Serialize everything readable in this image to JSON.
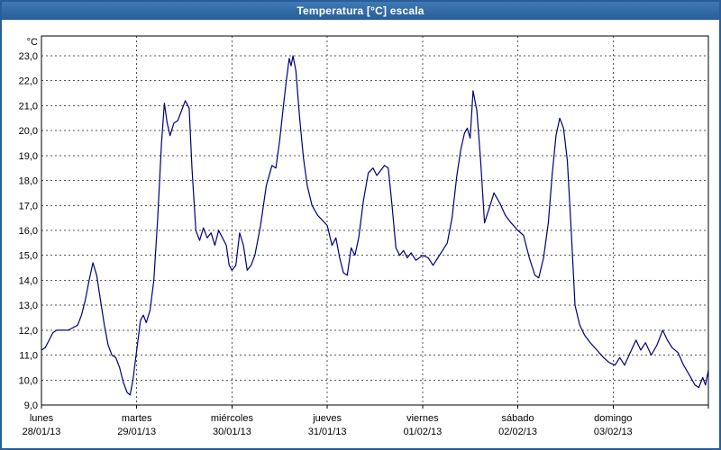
{
  "window": {
    "title": "Temperatura [°C] escala"
  },
  "chart_data": {
    "type": "line",
    "title": "Temperatura [°C] escala",
    "grid": "dashed",
    "legend": "none",
    "y_axis": {
      "unit": "°C",
      "min": 9,
      "max": 23,
      "step": 1,
      "tick_labels": [
        "23,0",
        "22,0",
        "21,0",
        "20,0",
        "19,0",
        "18,0",
        "17,0",
        "16,0",
        "15,0",
        "14,0",
        "13,0",
        "12,0",
        "11,0",
        "10,0",
        "9,0"
      ]
    },
    "x_axis": {
      "range_days": [
        0,
        7
      ],
      "days": [
        {
          "name": "lunes",
          "date": "28/01/13"
        },
        {
          "name": "martes",
          "date": "29/01/13"
        },
        {
          "name": "miércoles",
          "date": "30/01/13"
        },
        {
          "name": "jueves",
          "date": "31/01/13"
        },
        {
          "name": "viernes",
          "date": "01/02/13"
        },
        {
          "name": "sábado",
          "date": "02/02/13"
        },
        {
          "name": "domingo",
          "date": "03/02/13"
        }
      ]
    },
    "series": [
      {
        "name": "Temperatura [°C]",
        "color": "#00007f",
        "points_day_temp": [
          [
            0.0,
            11.2
          ],
          [
            0.04,
            11.3
          ],
          [
            0.08,
            11.6
          ],
          [
            0.12,
            11.9
          ],
          [
            0.16,
            12.0
          ],
          [
            0.22,
            12.0
          ],
          [
            0.28,
            12.0
          ],
          [
            0.33,
            12.1
          ],
          [
            0.38,
            12.2
          ],
          [
            0.42,
            12.6
          ],
          [
            0.46,
            13.2
          ],
          [
            0.5,
            14.0
          ],
          [
            0.54,
            14.7
          ],
          [
            0.58,
            14.2
          ],
          [
            0.62,
            13.2
          ],
          [
            0.66,
            12.2
          ],
          [
            0.7,
            11.4
          ],
          [
            0.74,
            11.0
          ],
          [
            0.78,
            10.9
          ],
          [
            0.82,
            10.5
          ],
          [
            0.86,
            9.9
          ],
          [
            0.9,
            9.5
          ],
          [
            0.93,
            9.4
          ],
          [
            0.96,
            10.0
          ],
          [
            1.0,
            11.2
          ],
          [
            1.04,
            12.4
          ],
          [
            1.07,
            12.6
          ],
          [
            1.1,
            12.3
          ],
          [
            1.14,
            12.8
          ],
          [
            1.18,
            14.0
          ],
          [
            1.22,
            16.5
          ],
          [
            1.26,
            19.5
          ],
          [
            1.29,
            21.1
          ],
          [
            1.32,
            20.3
          ],
          [
            1.35,
            19.8
          ],
          [
            1.39,
            20.3
          ],
          [
            1.43,
            20.4
          ],
          [
            1.47,
            20.8
          ],
          [
            1.51,
            21.2
          ],
          [
            1.55,
            20.9
          ],
          [
            1.58,
            18.5
          ],
          [
            1.62,
            16.0
          ],
          [
            1.66,
            15.6
          ],
          [
            1.7,
            16.1
          ],
          [
            1.74,
            15.7
          ],
          [
            1.78,
            15.9
          ],
          [
            1.82,
            15.4
          ],
          [
            1.86,
            16.0
          ],
          [
            1.9,
            15.7
          ],
          [
            1.94,
            15.4
          ],
          [
            1.97,
            14.6
          ],
          [
            2.0,
            14.4
          ],
          [
            2.04,
            14.6
          ],
          [
            2.08,
            15.9
          ],
          [
            2.12,
            15.4
          ],
          [
            2.16,
            14.4
          ],
          [
            2.2,
            14.6
          ],
          [
            2.24,
            15.0
          ],
          [
            2.3,
            16.2
          ],
          [
            2.36,
            17.8
          ],
          [
            2.42,
            18.6
          ],
          [
            2.46,
            18.5
          ],
          [
            2.5,
            19.6
          ],
          [
            2.54,
            21.0
          ],
          [
            2.57,
            22.0
          ],
          [
            2.6,
            22.9
          ],
          [
            2.62,
            22.6
          ],
          [
            2.64,
            23.0
          ],
          [
            2.67,
            22.4
          ],
          [
            2.71,
            20.5
          ],
          [
            2.75,
            18.9
          ],
          [
            2.79,
            17.8
          ],
          [
            2.84,
            17.0
          ],
          [
            2.9,
            16.6
          ],
          [
            2.95,
            16.4
          ],
          [
            3.0,
            16.2
          ],
          [
            3.05,
            15.4
          ],
          [
            3.09,
            15.7
          ],
          [
            3.13,
            14.9
          ],
          [
            3.17,
            14.3
          ],
          [
            3.21,
            14.2
          ],
          [
            3.25,
            15.3
          ],
          [
            3.29,
            15.0
          ],
          [
            3.33,
            15.7
          ],
          [
            3.38,
            17.2
          ],
          [
            3.43,
            18.3
          ],
          [
            3.48,
            18.5
          ],
          [
            3.52,
            18.2
          ],
          [
            3.56,
            18.4
          ],
          [
            3.6,
            18.6
          ],
          [
            3.64,
            18.5
          ],
          [
            3.68,
            17.0
          ],
          [
            3.72,
            15.3
          ],
          [
            3.76,
            15.0
          ],
          [
            3.8,
            15.2
          ],
          [
            3.84,
            14.9
          ],
          [
            3.88,
            15.1
          ],
          [
            3.93,
            14.8
          ],
          [
            4.0,
            15.0
          ],
          [
            4.06,
            14.9
          ],
          [
            4.11,
            14.6
          ],
          [
            4.16,
            14.9
          ],
          [
            4.21,
            15.2
          ],
          [
            4.26,
            15.5
          ],
          [
            4.31,
            16.5
          ],
          [
            4.36,
            18.2
          ],
          [
            4.4,
            19.2
          ],
          [
            4.44,
            19.9
          ],
          [
            4.47,
            20.1
          ],
          [
            4.5,
            19.7
          ],
          [
            4.53,
            21.6
          ],
          [
            4.57,
            20.8
          ],
          [
            4.61,
            18.8
          ],
          [
            4.65,
            16.3
          ],
          [
            4.7,
            16.9
          ],
          [
            4.75,
            17.5
          ],
          [
            4.81,
            17.1
          ],
          [
            4.87,
            16.6
          ],
          [
            4.93,
            16.3
          ],
          [
            5.0,
            16.0
          ],
          [
            5.06,
            15.8
          ],
          [
            5.12,
            14.9
          ],
          [
            5.18,
            14.2
          ],
          [
            5.22,
            14.1
          ],
          [
            5.27,
            14.9
          ],
          [
            5.32,
            16.3
          ],
          [
            5.36,
            18.2
          ],
          [
            5.4,
            19.8
          ],
          [
            5.44,
            20.5
          ],
          [
            5.48,
            20.1
          ],
          [
            5.52,
            18.8
          ],
          [
            5.56,
            16.0
          ],
          [
            5.6,
            13.0
          ],
          [
            5.65,
            12.2
          ],
          [
            5.7,
            11.8
          ],
          [
            5.76,
            11.5
          ],
          [
            5.83,
            11.2
          ],
          [
            5.9,
            10.9
          ],
          [
            5.96,
            10.7
          ],
          [
            6.02,
            10.6
          ],
          [
            6.07,
            10.9
          ],
          [
            6.12,
            10.6
          ],
          [
            6.18,
            11.1
          ],
          [
            6.24,
            11.6
          ],
          [
            6.29,
            11.2
          ],
          [
            6.34,
            11.5
          ],
          [
            6.4,
            11.0
          ],
          [
            6.46,
            11.4
          ],
          [
            6.52,
            12.0
          ],
          [
            6.57,
            11.6
          ],
          [
            6.62,
            11.3
          ],
          [
            6.68,
            11.1
          ],
          [
            6.74,
            10.6
          ],
          [
            6.8,
            10.2
          ],
          [
            6.86,
            9.8
          ],
          [
            6.9,
            9.7
          ],
          [
            6.94,
            10.1
          ],
          [
            6.97,
            9.8
          ],
          [
            7.0,
            10.4
          ]
        ]
      }
    ]
  }
}
